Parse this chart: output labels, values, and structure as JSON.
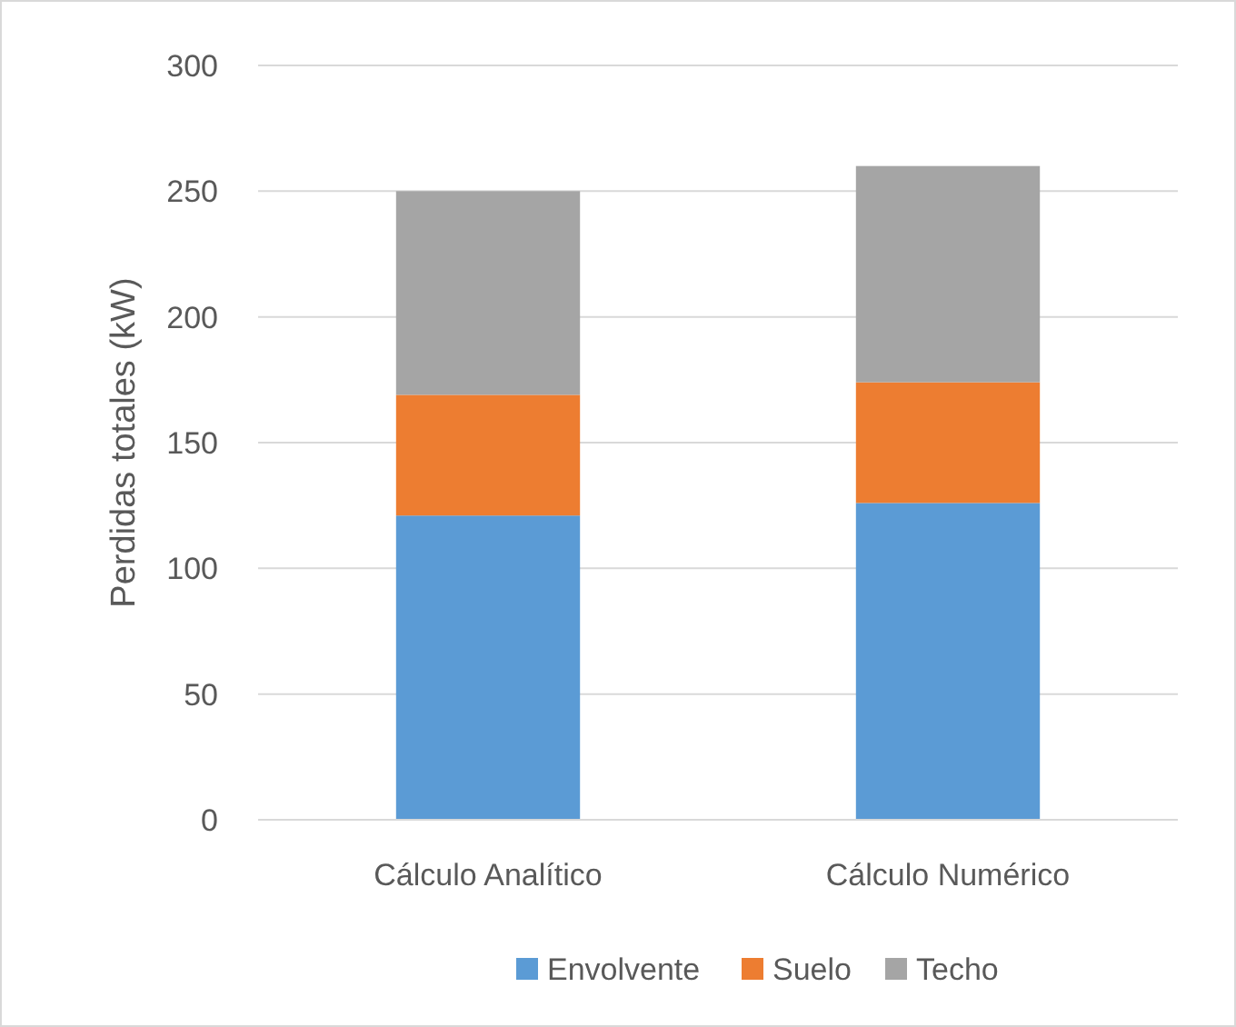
{
  "chart_data": {
    "type": "bar",
    "stacked": true,
    "ylabel": "Perdidas totales (kW)",
    "categories": [
      "Cálculo Analítico",
      "Cálculo Numérico"
    ],
    "series": [
      {
        "name": "Envolvente",
        "color": "#5b9bd5",
        "values": [
          121,
          126
        ]
      },
      {
        "name": "Suelo",
        "color": "#ed7d31",
        "values": [
          48,
          48
        ]
      },
      {
        "name": "Techo",
        "color": "#a5a5a5",
        "values": [
          81,
          86
        ]
      }
    ],
    "ylim": [
      0,
      300
    ],
    "yticks": [
      0,
      50,
      100,
      150,
      200,
      250,
      300
    ],
    "grid": "y",
    "legend": "bottom"
  }
}
